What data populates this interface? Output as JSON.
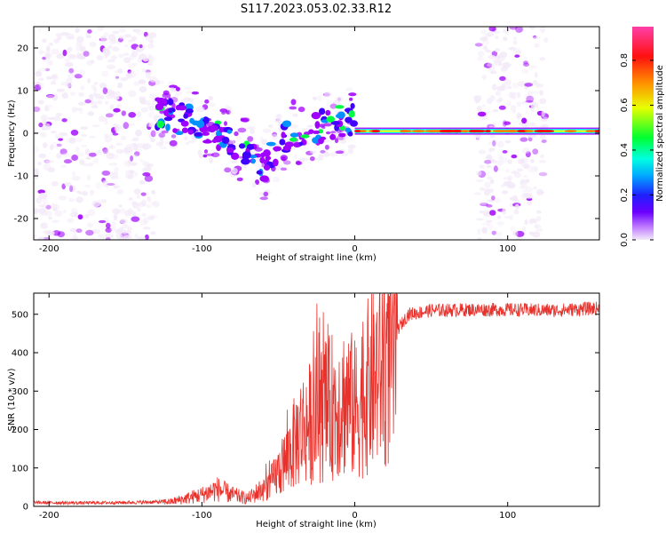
{
  "title": "S117.2023.053.02.33.R12",
  "chart_data": [
    {
      "type": "heatmap",
      "xlabel": "Height of straight line (km)",
      "ylabel": "Frequency (Hz)",
      "xlim": [
        -210,
        160
      ],
      "ylim": [
        -25,
        25
      ],
      "xticks": [
        -200,
        -100,
        0,
        100
      ],
      "yticks": [
        -20,
        -10,
        0,
        10,
        20
      ],
      "colorbar": {
        "label": "Normalized spectral amplitude",
        "range": [
          0,
          0.95
        ],
        "ticks": [
          0.0,
          0.2,
          0.4,
          0.6,
          0.8
        ],
        "colormap": [
          "#f3eaf8",
          "#a000ff",
          "#3f00ff",
          "#0090ff",
          "#00ffff",
          "#00ff40",
          "#ffff00",
          "#ff8000",
          "#ff0000",
          "#ff40a0"
        ]
      },
      "regions": [
        {
          "x": [
            -210,
            -130
          ],
          "y": [
            -25,
            25
          ],
          "kind": "scattered noise"
        },
        {
          "x": [
            80,
            125
          ],
          "y": [
            -25,
            25
          ],
          "kind": "scattered noise"
        },
        {
          "x": [
            -130,
            0
          ],
          "y": [
            -12,
            10
          ],
          "kind": "descending signal trace",
          "trend": [
            [
              -130,
              5
            ],
            [
              -100,
              2
            ],
            [
              -75,
              -3
            ],
            [
              -60,
              -8
            ],
            [
              -45,
              -1
            ],
            [
              -10,
              3
            ]
          ]
        },
        {
          "x": [
            0,
            160
          ],
          "y": [
            -1,
            2
          ],
          "kind": "steady carrier line",
          "frequency": 0.5
        }
      ]
    },
    {
      "type": "line",
      "xlabel": "Height of straight line (km)",
      "ylabel": "SNR (10 * v/v)",
      "xlim": [
        -210,
        160
      ],
      "ylim": [
        0,
        555
      ],
      "xticks": [
        -200,
        -100,
        0,
        100
      ],
      "yticks": [
        0,
        100,
        200,
        300,
        400,
        500
      ],
      "color": "#e8312b",
      "series": [
        {
          "x": [
            -210,
            -180,
            -150,
            -120,
            -100,
            -90,
            -80,
            -70,
            -55,
            -45,
            -35,
            -25,
            -15,
            -5,
            0,
            10,
            20,
            25,
            28,
            35,
            50,
            80,
            100,
            130,
            155,
            160
          ],
          "values": [
            10,
            9,
            10,
            12,
            30,
            45,
            30,
            20,
            60,
            120,
            200,
            230,
            260,
            280,
            250,
            320,
            370,
            380,
            460,
            500,
            510,
            512,
            512,
            510,
            515,
            515
          ]
        }
      ]
    }
  ]
}
